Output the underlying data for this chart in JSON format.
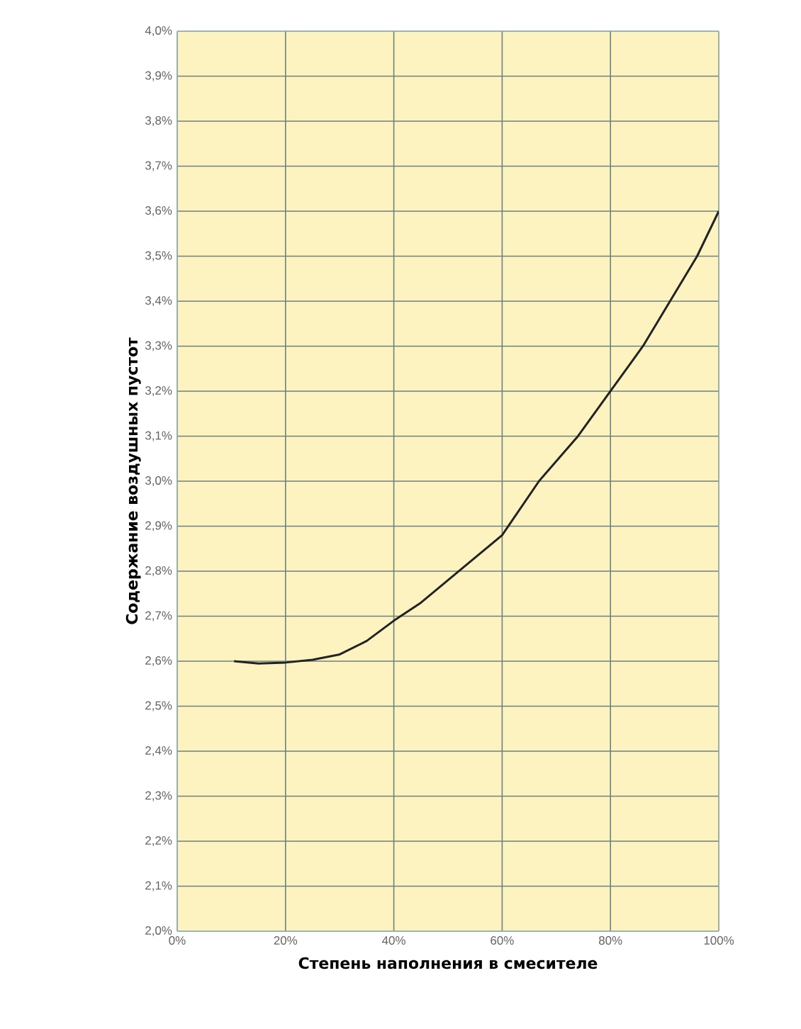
{
  "chart_data": {
    "type": "line",
    "xlabel": "Степень наполнения в смесителе",
    "ylabel": "Содержание воздушных пустот",
    "x": [
      10.5,
      15,
      20,
      25,
      30,
      35,
      40,
      45,
      50,
      55,
      60,
      66.8,
      74,
      80,
      86,
      91,
      96,
      100
    ],
    "series": [
      {
        "color": "#222222",
        "values": [
          2.6,
          2.595,
          2.597,
          2.603,
          2.615,
          2.645,
          2.69,
          2.73,
          2.78,
          2.83,
          2.88,
          3.0,
          3.1,
          3.2,
          3.3,
          3.4,
          3.5,
          3.6
        ]
      }
    ],
    "xlim": [
      0,
      100
    ],
    "ylim": [
      2.0,
      4.0
    ],
    "xticks": [
      {
        "value": 0,
        "label": "0%"
      },
      {
        "value": 20,
        "label": "20%"
      },
      {
        "value": 40,
        "label": "40%"
      },
      {
        "value": 60,
        "label": "60%"
      },
      {
        "value": 80,
        "label": "80%"
      },
      {
        "value": 100,
        "label": "100%"
      }
    ],
    "yticks": [
      {
        "value": 2.0,
        "label": "2,0%"
      },
      {
        "value": 2.1,
        "label": "2,1%"
      },
      {
        "value": 2.2,
        "label": "2,2%"
      },
      {
        "value": 2.3,
        "label": "2,3%"
      },
      {
        "value": 2.4,
        "label": "2,4%"
      },
      {
        "value": 2.5,
        "label": "2,5%"
      },
      {
        "value": 2.6,
        "label": "2,6%"
      },
      {
        "value": 2.7,
        "label": "2,7%"
      },
      {
        "value": 2.8,
        "label": "2,8%"
      },
      {
        "value": 2.9,
        "label": "2,9%"
      },
      {
        "value": 3.0,
        "label": "3,0%"
      },
      {
        "value": 3.1,
        "label": "3,1%"
      },
      {
        "value": 3.2,
        "label": "3,2%"
      },
      {
        "value": 3.3,
        "label": "3,3%"
      },
      {
        "value": 3.4,
        "label": "3,4%"
      },
      {
        "value": 3.5,
        "label": "3,5%"
      },
      {
        "value": 3.6,
        "label": "3,6%"
      },
      {
        "value": 3.7,
        "label": "3,7%"
      },
      {
        "value": 3.8,
        "label": "3,8%"
      },
      {
        "value": 3.9,
        "label": "3,9%"
      },
      {
        "value": 4.0,
        "label": "4,0%"
      }
    ],
    "grid": true,
    "marker": "none"
  }
}
